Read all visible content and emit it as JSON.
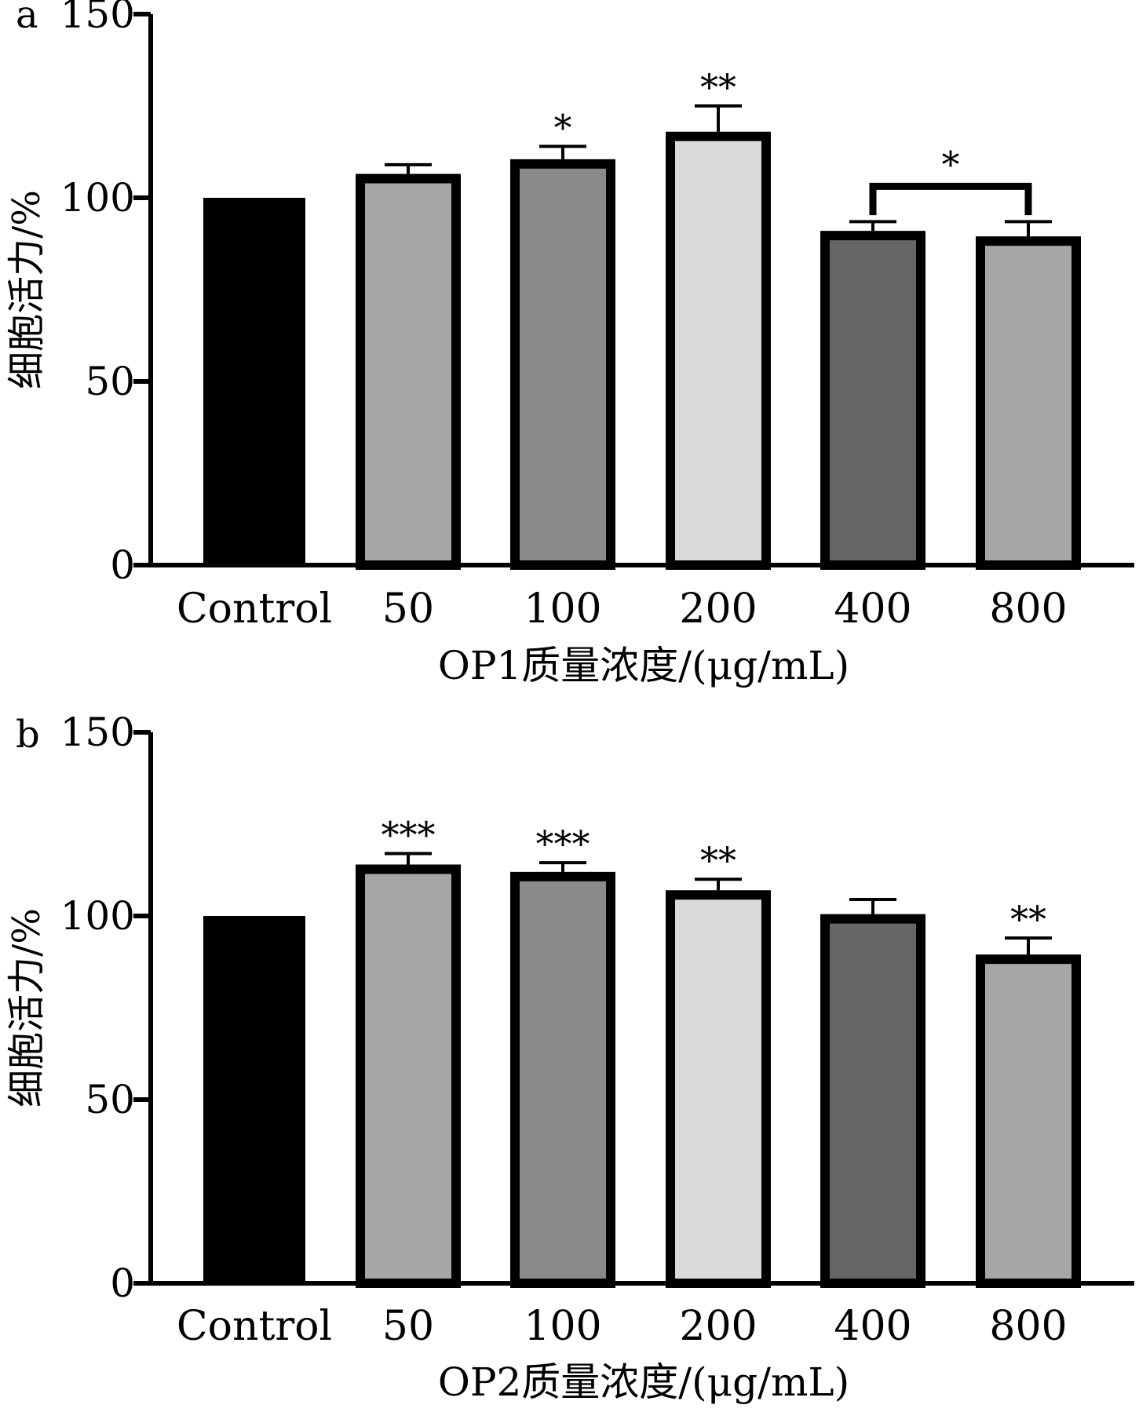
{
  "chart_data": [
    {
      "type": "bar",
      "panel_label": "a",
      "categories": [
        "Control",
        "50",
        "100",
        "200",
        "400",
        "800"
      ],
      "values": [
        100,
        106.5,
        110.5,
        118,
        91,
        89.5
      ],
      "errors": [
        0,
        2.5,
        3.5,
        7,
        2.5,
        4
      ],
      "significance": [
        "",
        "",
        "*",
        "**",
        "",
        ""
      ],
      "bracket": {
        "from": 4,
        "to": 5,
        "label": "*"
      },
      "bar_fills": [
        "#000000",
        "#a6a6a6",
        "#8a8a8a",
        "#d9d9d9",
        "#666666",
        "#a6a6a6"
      ],
      "xlabel": "OP1质量浓度/(μg/mL)",
      "ylabel": "细胞活力/%",
      "ylim": [
        0,
        150
      ],
      "yticks": [
        0,
        50,
        100,
        150
      ]
    },
    {
      "type": "bar",
      "panel_label": "b",
      "categories": [
        "Control",
        "50",
        "100",
        "200",
        "400",
        "800"
      ],
      "values": [
        100,
        114,
        112,
        107,
        100.5,
        89.5
      ],
      "errors": [
        0,
        3,
        2.5,
        3,
        4,
        4.5
      ],
      "significance": [
        "",
        "***",
        "***",
        "**",
        "",
        "**"
      ],
      "bar_fills": [
        "#000000",
        "#a6a6a6",
        "#8a8a8a",
        "#d9d9d9",
        "#666666",
        "#a6a6a6"
      ],
      "xlabel": "OP2质量浓度/(μg/mL)",
      "ylabel": "细胞活力/%",
      "ylim": [
        0,
        150
      ],
      "yticks": [
        0,
        50,
        100,
        150
      ]
    }
  ]
}
